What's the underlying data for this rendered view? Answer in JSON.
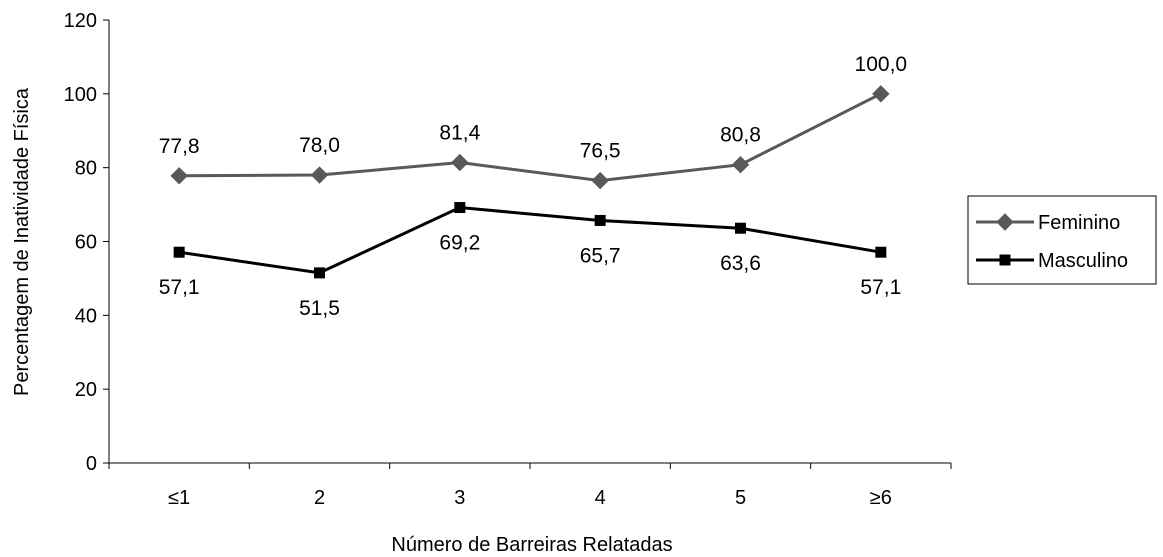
{
  "chart_data": {
    "type": "line",
    "title": "",
    "xlabel": "Número de Barreiras Relatadas",
    "ylabel": "Percentagem de Inatividade Física",
    "categories": [
      "≤1",
      "2",
      "3",
      "4",
      "5",
      "≥6"
    ],
    "ylim": [
      0,
      120
    ],
    "yticks": [
      0,
      20,
      40,
      60,
      80,
      100,
      120
    ],
    "grid": false,
    "legend": "right",
    "series": [
      {
        "name": "Feminino",
        "values": [
          77.8,
          78.0,
          81.4,
          76.5,
          80.8,
          100.0
        ],
        "labels": [
          "77,8",
          "78,0",
          "81,4",
          "76,5",
          "80,8",
          "100,0"
        ],
        "label_position": "above",
        "marker": "diamond",
        "color": "#595959"
      },
      {
        "name": "Masculino",
        "values": [
          57.1,
          51.5,
          69.2,
          65.7,
          63.6,
          57.1
        ],
        "labels": [
          "57,1",
          "51,5",
          "69,2",
          "65,7",
          "63,6",
          "57,1"
        ],
        "label_position": "below",
        "marker": "square",
        "color": "#000000"
      }
    ]
  }
}
